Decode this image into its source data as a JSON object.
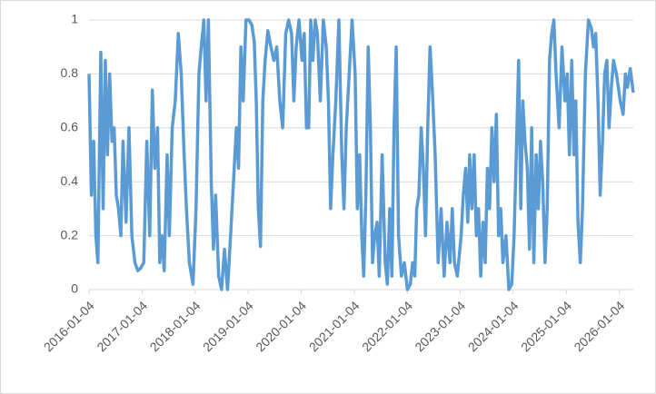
{
  "chart_data": {
    "type": "line",
    "x": [
      "2016-01-04",
      "2016-01-20",
      "2016-02-05",
      "2016-02-20",
      "2016-03-05",
      "2016-03-25",
      "2016-04-10",
      "2016-04-25",
      "2016-05-10",
      "2016-05-25",
      "2016-06-10",
      "2016-06-25",
      "2016-07-10",
      "2016-07-25",
      "2016-08-10",
      "2016-08-25",
      "2016-09-15",
      "2016-10-05",
      "2016-10-25",
      "2016-11-15",
      "2016-12-05",
      "2016-12-25",
      "2017-01-15",
      "2017-02-05",
      "2017-02-25",
      "2017-03-15",
      "2017-04-01",
      "2017-04-20",
      "2017-05-05",
      "2017-05-20",
      "2017-06-05",
      "2017-06-25",
      "2017-07-10",
      "2017-07-30",
      "2017-08-20",
      "2017-09-10",
      "2017-09-30",
      "2017-10-20",
      "2017-11-05",
      "2017-11-25",
      "2017-12-20",
      "2018-01-10",
      "2018-01-30",
      "2018-02-15",
      "2018-03-05",
      "2018-03-20",
      "2018-04-05",
      "2018-04-25",
      "2018-05-10",
      "2018-05-25",
      "2018-06-15",
      "2018-07-05",
      "2018-07-25",
      "2018-08-15",
      "2018-09-05",
      "2018-09-25",
      "2018-10-15",
      "2018-10-30",
      "2018-11-15",
      "2018-12-01",
      "2018-12-20",
      "2019-01-10",
      "2019-01-30",
      "2019-02-15",
      "2019-03-01",
      "2019-03-15",
      "2019-03-30",
      "2019-04-15",
      "2019-05-01",
      "2019-05-20",
      "2019-06-10",
      "2019-06-30",
      "2019-07-20",
      "2019-08-10",
      "2019-08-30",
      "2019-09-20",
      "2019-10-10",
      "2019-10-30",
      "2019-11-15",
      "2019-12-01",
      "2019-12-20",
      "2020-01-10",
      "2020-01-25",
      "2020-02-10",
      "2020-02-25",
      "2020-03-10",
      "2020-03-25",
      "2020-04-10",
      "2020-04-25",
      "2020-05-15",
      "2020-06-05",
      "2020-06-25",
      "2020-07-10",
      "2020-07-25",
      "2020-08-10",
      "2020-08-30",
      "2020-09-20",
      "2020-10-10",
      "2020-10-25",
      "2020-11-10",
      "2020-11-30",
      "2020-12-20",
      "2021-01-10",
      "2021-01-25",
      "2021-02-10",
      "2021-02-25",
      "2021-03-10",
      "2021-03-25",
      "2021-04-10",
      "2021-04-25",
      "2021-05-10",
      "2021-05-25",
      "2021-06-10",
      "2021-06-25",
      "2021-07-15",
      "2021-08-05",
      "2021-08-20",
      "2021-09-05",
      "2021-09-20",
      "2021-10-05",
      "2021-10-20",
      "2021-11-05",
      "2021-11-25",
      "2021-12-15",
      "2022-01-05",
      "2022-01-25",
      "2022-02-10",
      "2022-02-25",
      "2022-03-10",
      "2022-03-25",
      "2022-04-10",
      "2022-04-25",
      "2022-05-10",
      "2022-05-25",
      "2022-06-10",
      "2022-06-25",
      "2022-07-15",
      "2022-08-05",
      "2022-08-25",
      "2022-09-15",
      "2022-10-05",
      "2022-10-25",
      "2022-11-10",
      "2022-11-25",
      "2022-12-15",
      "2023-01-10",
      "2023-01-25",
      "2023-02-10",
      "2023-02-25",
      "2023-03-10",
      "2023-03-25",
      "2023-04-10",
      "2023-04-25",
      "2023-05-10",
      "2023-05-25",
      "2023-06-10",
      "2023-06-25",
      "2023-07-10",
      "2023-07-25",
      "2023-08-10",
      "2023-08-25",
      "2023-09-10",
      "2023-09-25",
      "2023-10-10",
      "2023-10-25",
      "2023-11-15",
      "2023-12-05",
      "2023-12-25",
      "2024-01-10",
      "2024-01-25",
      "2024-02-10",
      "2024-02-25",
      "2024-03-10",
      "2024-03-25",
      "2024-04-10",
      "2024-04-25",
      "2024-05-10",
      "2024-05-25",
      "2024-06-10",
      "2024-06-25",
      "2024-07-10",
      "2024-07-25",
      "2024-08-10",
      "2024-08-25",
      "2024-09-10",
      "2024-09-25",
      "2024-10-10",
      "2024-10-25",
      "2024-11-15",
      "2024-12-05",
      "2024-12-25",
      "2025-01-10",
      "2025-01-25",
      "2025-02-10",
      "2025-02-25",
      "2025-03-10",
      "2025-03-25",
      "2025-04-10",
      "2025-04-25",
      "2025-05-15",
      "2025-06-05",
      "2025-06-25",
      "2025-07-10",
      "2025-07-25",
      "2025-08-10",
      "2025-08-25",
      "2025-09-10",
      "2025-09-25",
      "2025-10-10",
      "2025-10-25",
      "2025-11-10",
      "2025-11-25",
      "2025-12-15",
      "2026-01-10",
      "2026-01-30",
      "2026-02-15",
      "2026-03-01",
      "2026-03-20",
      "2026-04-10"
    ],
    "series": [
      {
        "color": "#5b9bd5",
        "values": [
          0.8,
          0.35,
          0.55,
          0.2,
          0.1,
          0.88,
          0.3,
          0.85,
          0.5,
          0.8,
          0.55,
          0.6,
          0.35,
          0.3,
          0.2,
          0.55,
          0.25,
          0.6,
          0.2,
          0.1,
          0.07,
          0.08,
          0.1,
          0.55,
          0.2,
          0.74,
          0.45,
          0.6,
          0.1,
          0.2,
          0.07,
          0.5,
          0.2,
          0.6,
          0.7,
          0.95,
          0.8,
          0.5,
          0.3,
          0.1,
          0.02,
          0.3,
          0.8,
          0.9,
          1,
          0.7,
          1,
          0.4,
          0.15,
          0.35,
          0.05,
          0,
          0.15,
          0,
          0.2,
          0.4,
          0.6,
          0.45,
          0.9,
          0.7,
          1,
          1,
          0.98,
          0.92,
          0.7,
          0.3,
          0.16,
          0.7,
          0.85,
          0.96,
          0.9,
          0.85,
          0.9,
          0.7,
          0.6,
          0.95,
          1,
          0.95,
          0.7,
          0.9,
          1,
          0.85,
          0.95,
          0.6,
          0.6,
          1,
          0.85,
          1,
          0.95,
          0.7,
          1,
          0.9,
          0.7,
          0.3,
          0.5,
          0.7,
          1,
          0.5,
          0.3,
          0.6,
          0.8,
          1,
          0.8,
          0.3,
          0.5,
          0.2,
          0.05,
          0.35,
          0.9,
          0.6,
          0.1,
          0.2,
          0.25,
          0.05,
          0.5,
          0.1,
          0.02,
          0.3,
          0.05,
          0.6,
          0.9,
          0.2,
          0.05,
          0.1,
          0,
          0.02,
          0.1,
          0.05,
          0.3,
          0.35,
          0.6,
          0.45,
          0.2,
          0.6,
          0.9,
          0.75,
          0.5,
          0.1,
          0.3,
          0.05,
          0.25,
          0.1,
          0.3,
          0.1,
          0.05,
          0.2,
          0.35,
          0.45,
          0.25,
          0.5,
          0.3,
          0.5,
          0.2,
          0.3,
          0.05,
          0.25,
          0.1,
          0.45,
          0.3,
          0.6,
          0.4,
          0.65,
          0.2,
          0.3,
          0.1,
          0.2,
          0,
          0.02,
          0.2,
          0.5,
          0.85,
          0.3,
          0.7,
          0.55,
          0.45,
          0.15,
          0.6,
          0.1,
          0.5,
          0.3,
          0.55,
          0.4,
          0.1,
          0.3,
          0.85,
          0.95,
          1,
          0.8,
          0.6,
          0.9,
          0.7,
          0.8,
          0.5,
          0.85,
          0.5,
          0.7,
          0.25,
          0.1,
          0.3,
          0.8,
          1,
          0.97,
          0.9,
          0.95,
          0.7,
          0.35,
          0.55,
          0.8,
          0.85,
          0.6,
          0.75,
          0.85,
          0.8,
          0.7,
          0.65,
          0.8,
          0.75,
          0.82,
          0.73
        ]
      }
    ],
    "xlim": [
      "2016-01-04",
      "2026-04-10"
    ],
    "xticks": [
      "2016-01-04",
      "2017-01-04",
      "2018-01-04",
      "2019-01-04",
      "2020-01-04",
      "2021-01-04",
      "2022-01-04",
      "2023-01-04",
      "2024-01-04",
      "2025-01-04",
      "2026-01-04"
    ],
    "ylim": [
      0,
      1
    ],
    "yticks": [
      0,
      0.2,
      0.4,
      0.6,
      0.8,
      1
    ],
    "grid": true
  }
}
